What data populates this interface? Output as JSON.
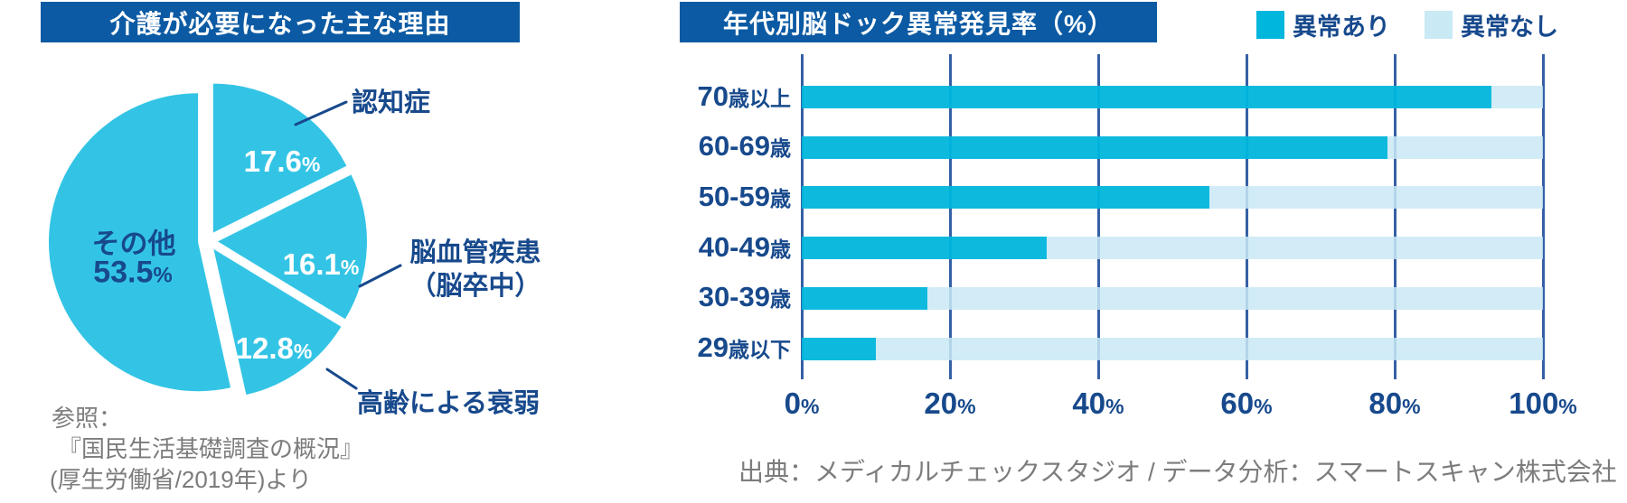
{
  "left_chart": {
    "title": "介護が必要になった主な理由",
    "callouts": [
      {
        "lines": [
          "認知症"
        ]
      },
      {
        "lines": [
          "脳血管疾患",
          "（脳卒中）"
        ]
      },
      {
        "lines": [
          "高齢による衰弱"
        ]
      }
    ],
    "source_lines": [
      "参照：",
      "『国民生活基礎調査の概況』",
      "(厚生労働省/2019年)より"
    ]
  },
  "right_chart": {
    "title": "年代別脳ドック異常発見率（%）",
    "source": "出典：メディカルチェックスタジオ / データ分析：スマートスキャン株式会社"
  },
  "colors": {
    "header_blue": "#0b5aa3",
    "navy_text": "#17498c",
    "gridline_navy": "#3560a5",
    "pie_cyan": "#33c4e5",
    "bar_cyan": "#00b6dc",
    "bar_light": "#c9e9f5",
    "gray_text": "#7c7c7c"
  },
  "chart_data": [
    {
      "type": "pie",
      "title": "介護が必要になった主な理由",
      "slices": [
        {
          "label": "認知症",
          "value": 17.6
        },
        {
          "label": "脳血管疾患（脳卒中）",
          "value": 16.1
        },
        {
          "label": "高齢による衰弱",
          "value": 12.8
        },
        {
          "label": "その他",
          "value": 53.5
        }
      ],
      "unit": "%",
      "start_angle_deg": 0,
      "direction": "clockwise",
      "exploded": true,
      "slice_color": "#33c4e5",
      "source": "『国民生活基礎調査の概況』(厚生労働省/2019年)"
    },
    {
      "type": "bar",
      "orientation": "horizontal",
      "stacked": true,
      "title": "年代別脳ドック異常発見率（%）",
      "categories": [
        "70歳以上",
        "60-69歳",
        "50-59歳",
        "40-49歳",
        "30-39歳",
        "29歳以下"
      ],
      "series": [
        {
          "name": "異常あり",
          "color": "#00b6dc",
          "values": [
            93,
            79,
            55,
            33,
            17,
            10
          ]
        },
        {
          "name": "異常なし",
          "color": "#c9e9f5",
          "values": [
            7,
            21,
            45,
            67,
            83,
            90
          ]
        }
      ],
      "x_ticks": [
        "0%",
        "20%",
        "40%",
        "60%",
        "80%",
        "100%"
      ],
      "xlim": [
        0,
        100
      ],
      "grid": true,
      "legend_position": "top-right"
    }
  ]
}
